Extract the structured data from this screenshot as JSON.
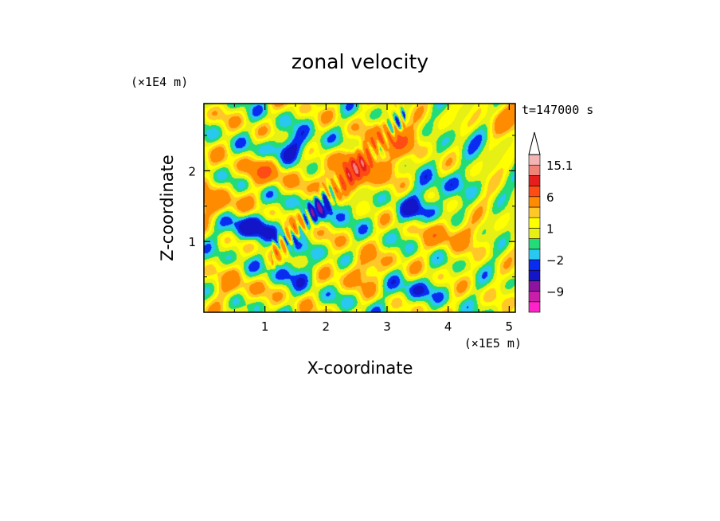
{
  "chart_data": {
    "type": "heatmap",
    "title": "zonal velocity",
    "xlabel": "X-coordinate",
    "ylabel": "Z-coordinate",
    "x_unit": "(×1E5 m)",
    "y_unit": "(×1E4 m)",
    "time_label": "t=147000 s",
    "xlim": [
      0.0,
      5.1
    ],
    "ylim": [
      0.0,
      2.95
    ],
    "x_ticks": [
      1,
      2,
      3,
      4,
      5
    ],
    "y_ticks": [
      1,
      2
    ],
    "colorbar": {
      "labels": [
        "15.1",
        "6",
        "1",
        "−2",
        "−9"
      ],
      "levels": [
        -12,
        -9,
        -6,
        -3,
        -2,
        -1,
        0,
        1,
        2,
        3,
        6,
        9,
        12,
        15.1
      ],
      "colors": [
        "#ff22c8",
        "#c81eaa",
        "#8c14a0",
        "#1414c8",
        "#0a2cf0",
        "#28c8f0",
        "#22dc7a",
        "#e6f014",
        "#ffff00",
        "#ffc828",
        "#ff8c00",
        "#ff4b14",
        "#e61e1e",
        "#f08278",
        "#f5b4b4"
      ],
      "extend_max": true
    },
    "features": [
      {
        "x": 1.45,
        "z": 2.35,
        "value": -4.0
      },
      {
        "x": 0.7,
        "z": 1.2,
        "value": -4.5
      },
      {
        "x": 2.05,
        "z": 1.52,
        "value": -4.0
      },
      {
        "x": 2.3,
        "z": 1.85,
        "value": 5.5
      },
      {
        "x": 2.6,
        "z": 2.1,
        "value": 6.5
      },
      {
        "x": 3.1,
        "z": 2.45,
        "value": 4.5
      },
      {
        "x": 1.0,
        "z": 2.0,
        "value": 3.5
      },
      {
        "x": 0.15,
        "z": 1.5,
        "value": 4.0
      },
      {
        "x": 3.9,
        "z": 1.8,
        "value": -2.5
      },
      {
        "x": 3.5,
        "z": 1.45,
        "value": -3.0
      },
      {
        "x": 4.4,
        "z": 2.45,
        "value": -2.0
      },
      {
        "x": 4.9,
        "z": 2.7,
        "value": 3.0
      },
      {
        "x": 4.0,
        "z": 1.1,
        "value": 3.5
      },
      {
        "x": 1.5,
        "z": 0.6,
        "value": -2.5
      },
      {
        "x": 3.4,
        "z": 0.3,
        "value": -2.5
      },
      {
        "x": 2.6,
        "z": 0.6,
        "value": 3.0
      },
      {
        "x": 0.5,
        "z": 0.35,
        "value": 2.0
      }
    ]
  }
}
